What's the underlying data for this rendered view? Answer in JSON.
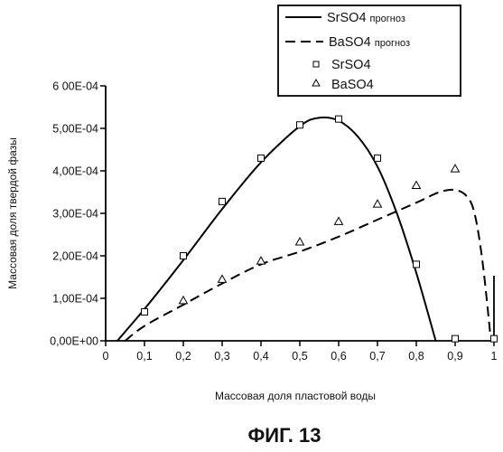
{
  "chart_data": {
    "type": "scatter",
    "xlabel": "Массовая доля пластовой воды",
    "ylabel": "Массовая доля твердой фазы",
    "xlim": [
      0,
      1
    ],
    "ylim": [
      0,
      0.0006
    ],
    "x_ticks": [
      0,
      0.1,
      0.2,
      0.3,
      0.4,
      0.5,
      0.6,
      0.7,
      0.8,
      0.9,
      1
    ],
    "x_tick_labels": [
      "0",
      "0,1",
      "0,2",
      "0,3",
      "0,4",
      "0,5",
      "0,6",
      "0,7",
      "0,8",
      "0,9",
      "1"
    ],
    "y_ticks": [
      0,
      0.0001,
      0.0002,
      0.0003,
      0.0004,
      0.0005,
      0.0006
    ],
    "y_tick_labels": [
      "0,00E+00",
      "1,00E-04",
      "2,00E-04",
      "3,00E-04",
      "4,00E-04",
      "5,00E-04",
      "6 00E-04"
    ],
    "grid": false,
    "legend_position": "top-right",
    "series": [
      {
        "name": "SrSO4",
        "name_suffix": "прогноз",
        "kind": "line",
        "style": "solid",
        "color": "#000000",
        "x": [
          0.03,
          0.1,
          0.2,
          0.3,
          0.4,
          0.5,
          0.55,
          0.6,
          0.65,
          0.7,
          0.75,
          0.8,
          0.85
        ],
        "y": [
          0,
          7.5e-05,
          0.00019,
          0.00031,
          0.00042,
          0.000505,
          0.000525,
          0.000518,
          0.00048,
          0.00041,
          0.0003,
          0.00016,
          0
        ]
      },
      {
        "name": "BaSO4",
        "name_suffix": "прогноз",
        "kind": "line",
        "style": "dashed",
        "color": "#000000",
        "x": [
          0.05,
          0.1,
          0.2,
          0.3,
          0.4,
          0.5,
          0.6,
          0.7,
          0.8,
          0.86,
          0.9,
          0.93,
          0.95,
          0.97,
          0.99
        ],
        "y": [
          0,
          3.5e-05,
          8.5e-05,
          0.000135,
          0.00018,
          0.00021,
          0.000245,
          0.000285,
          0.000325,
          0.00035,
          0.000355,
          0.00034,
          0.0003,
          0.00019,
          2e-05
        ]
      },
      {
        "name": "SrSO4",
        "kind": "scatter",
        "marker": "square",
        "color": "#000000",
        "x": [
          0.1,
          0.2,
          0.3,
          0.4,
          0.5,
          0.6,
          0.7,
          0.8,
          0.9,
          1.0
        ],
        "y": [
          6.8e-05,
          0.0002,
          0.000328,
          0.00043,
          0.000508,
          0.000522,
          0.00043,
          0.00018,
          5e-06,
          5e-06
        ]
      },
      {
        "name": "BaSO4",
        "kind": "scatter",
        "marker": "triangle",
        "color": "#000000",
        "x": [
          0.2,
          0.3,
          0.4,
          0.5,
          0.6,
          0.7,
          0.8,
          0.9
        ],
        "y": [
          9.5e-05,
          0.000145,
          0.000188,
          0.000233,
          0.000281,
          0.000322,
          0.000366,
          0.000405
        ]
      }
    ]
  },
  "figure_caption": "ФИГ. 13"
}
